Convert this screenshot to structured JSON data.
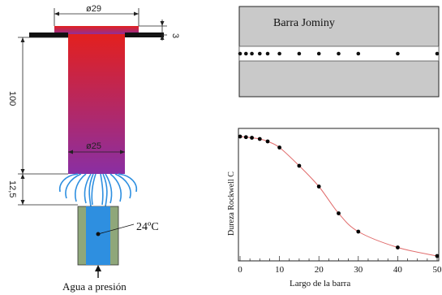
{
  "jominy_diagram": {
    "dimensions": {
      "top_diameter": "ø29",
      "flange_thickness": "3",
      "bar_length": "100",
      "bar_diameter": "ø25",
      "nozzle_gap": "12,5"
    },
    "water_temperature": "24ºC",
    "water_label": "Agua a presión"
  },
  "bar_panel": {
    "title": "Barra Jominy"
  },
  "chart_data": {
    "type": "line",
    "title": "",
    "xlabel": "Largo de la barra",
    "ylabel": "Dureza Rockwell C",
    "xlim": [
      0,
      50
    ],
    "xticks_labeled": [
      0,
      10,
      20,
      30,
      40,
      50
    ],
    "x": [
      0,
      1.5,
      3,
      5,
      7,
      10,
      15,
      20,
      25,
      30,
      40,
      50
    ],
    "y": [
      1.0,
      0.995,
      0.99,
      0.98,
      0.96,
      0.91,
      0.76,
      0.59,
      0.37,
      0.22,
      0.09,
      0.02
    ],
    "point_color": "#000000",
    "line_color": "#e06a6a",
    "grid": false
  },
  "colors": {
    "bar_top": "#e3201e",
    "bar_bottom": "#8a2fa3",
    "water": "#2e8fe0",
    "nozzle_wall": "#8fa77a"
  }
}
